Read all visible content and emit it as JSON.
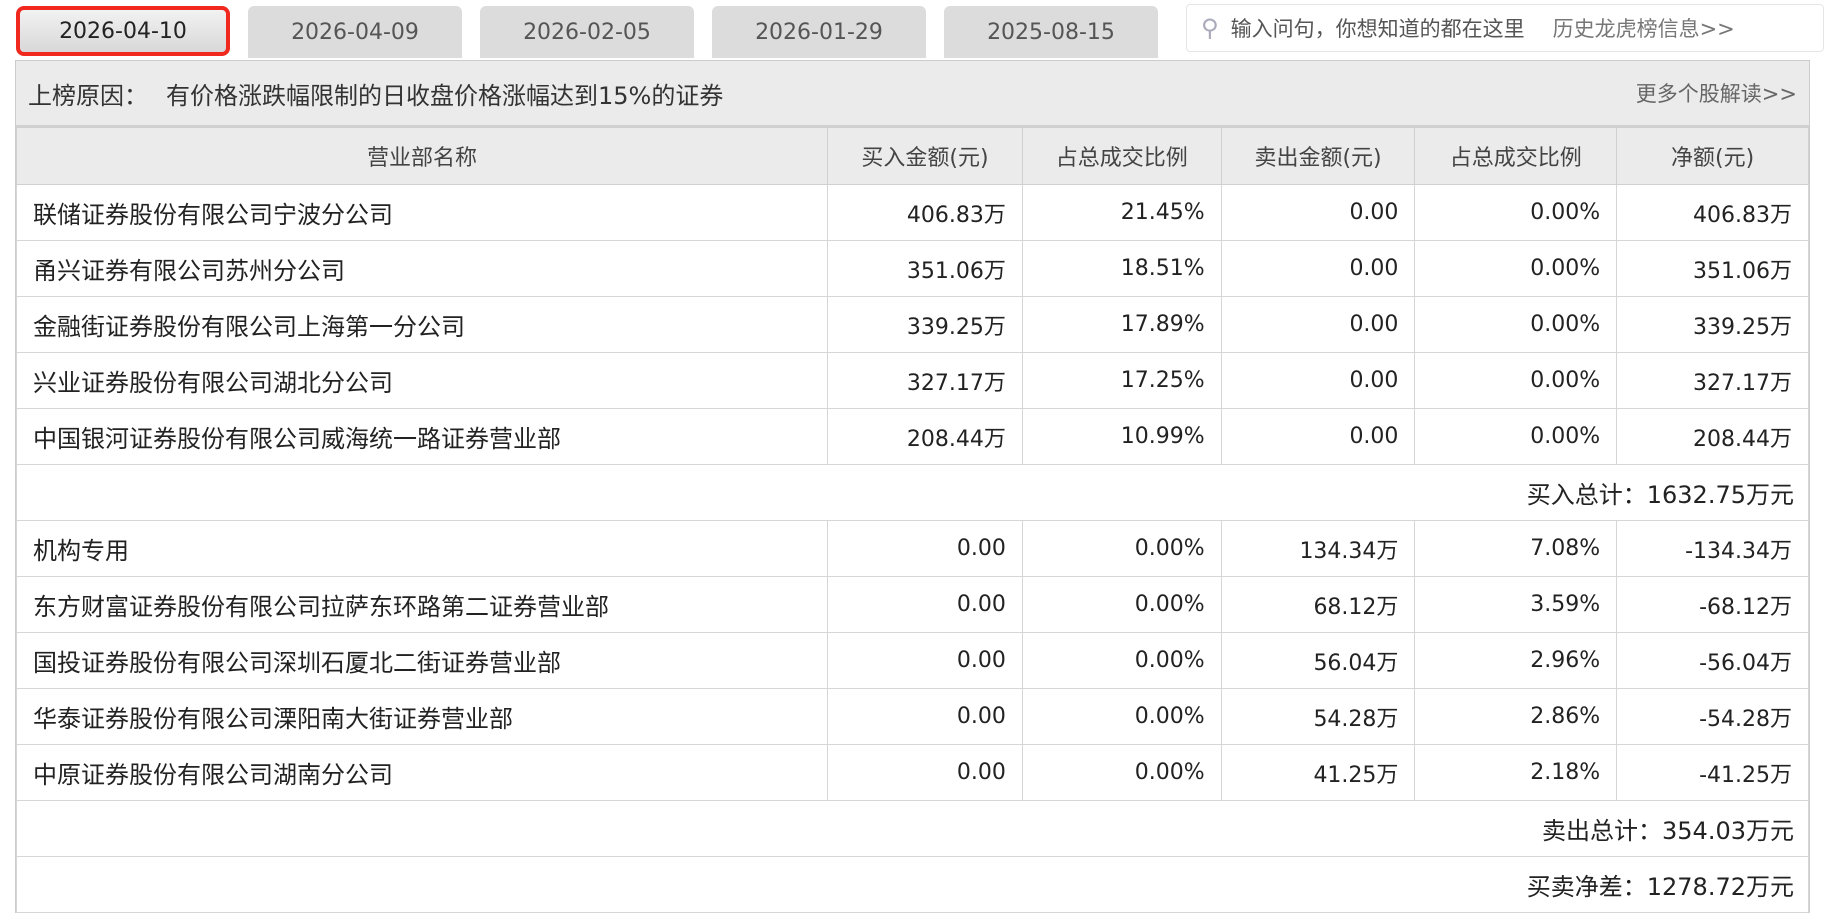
{
  "tabs": [
    "2026-04-10",
    "2026-04-09",
    "2026-02-05",
    "2026-01-29",
    "2025-08-15"
  ],
  "active_tab": "2026-04-10",
  "search": {
    "placeholder": "输入问句，你想知道的都在这里",
    "history_link": "历史龙虎榜信息>>"
  },
  "reason": {
    "label": "上榜原因：",
    "text": "有价格涨跌幅限制的日收盘价格涨幅达到15%的证券",
    "more": "更多个股解读>>"
  },
  "columns": [
    "营业部名称",
    "买入金额(元)",
    "占总成交比例",
    "卖出金额(元)",
    "占总成交比例",
    "净额(元)"
  ],
  "buy_rows": [
    [
      "联储证券股份有限公司宁波分公司",
      "406.83万",
      "21.45%",
      "0.00",
      "0.00%",
      "406.83万"
    ],
    [
      "甬兴证券有限公司苏州分公司",
      "351.06万",
      "18.51%",
      "0.00",
      "0.00%",
      "351.06万"
    ],
    [
      "金融街证券股份有限公司上海第一分公司",
      "339.25万",
      "17.89%",
      "0.00",
      "0.00%",
      "339.25万"
    ],
    [
      "兴业证券股份有限公司湖北分公司",
      "327.17万",
      "17.25%",
      "0.00",
      "0.00%",
      "327.17万"
    ],
    [
      "中国银河证券股份有限公司威海统一路证券营业部",
      "208.44万",
      "10.99%",
      "0.00",
      "0.00%",
      "208.44万"
    ]
  ],
  "buy_total": "买入总计：1632.75万元",
  "sell_rows": [
    [
      "机构专用",
      "0.00",
      "0.00%",
      "134.34万",
      "7.08%",
      "-134.34万"
    ],
    [
      "东方财富证券股份有限公司拉萨东环路第二证券营业部",
      "0.00",
      "0.00%",
      "68.12万",
      "3.59%",
      "-68.12万"
    ],
    [
      "国投证券股份有限公司深圳石厦北二街证券营业部",
      "0.00",
      "0.00%",
      "56.04万",
      "2.96%",
      "-56.04万"
    ],
    [
      "华泰证券股份有限公司溧阳南大街证券营业部",
      "0.00",
      "0.00%",
      "54.28万",
      "2.86%",
      "-54.28万"
    ],
    [
      "中原证券股份有限公司湖南分公司",
      "0.00",
      "0.00%",
      "41.25万",
      "2.18%",
      "-41.25万"
    ]
  ],
  "sell_total": "卖出总计：354.03万元",
  "net_total": "买卖净差：1278.72万元",
  "colors": {
    "active_tab_border": "#f0281e",
    "header_bg": "#ebebeb"
  }
}
